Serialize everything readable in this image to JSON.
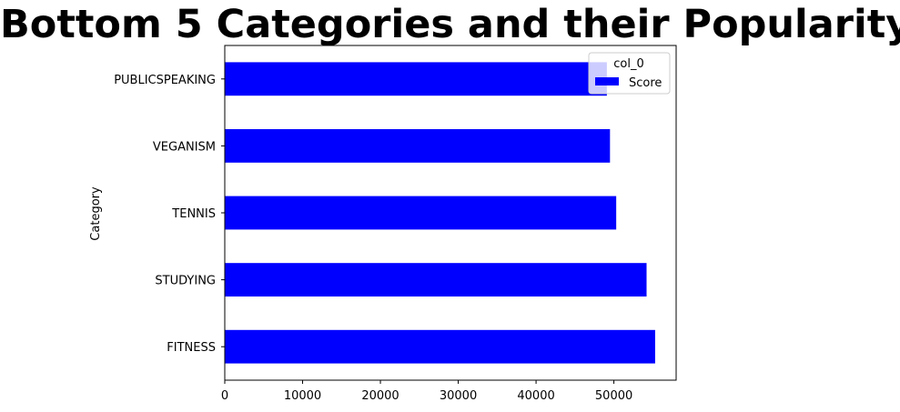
{
  "chart_data": {
    "type": "bar",
    "orientation": "horizontal",
    "title": "Bottom 5 Categories and their Popularity",
    "xlabel": "",
    "ylabel": "Category",
    "categories": [
      "FITNESS",
      "STUDYING",
      "TENNIS",
      "VEGANISM",
      "PUBLICSPEAKING"
    ],
    "series": [
      {
        "name": "Score",
        "values": [
          55300,
          54200,
          50300,
          49500,
          49100
        ]
      }
    ],
    "xlim": [
      0,
      58000
    ],
    "xticks": [
      0,
      10000,
      20000,
      30000,
      40000,
      50000
    ],
    "grid": false,
    "legend": {
      "title": "col_0",
      "placement": "top-right"
    },
    "bar_color": "#0000ff"
  }
}
